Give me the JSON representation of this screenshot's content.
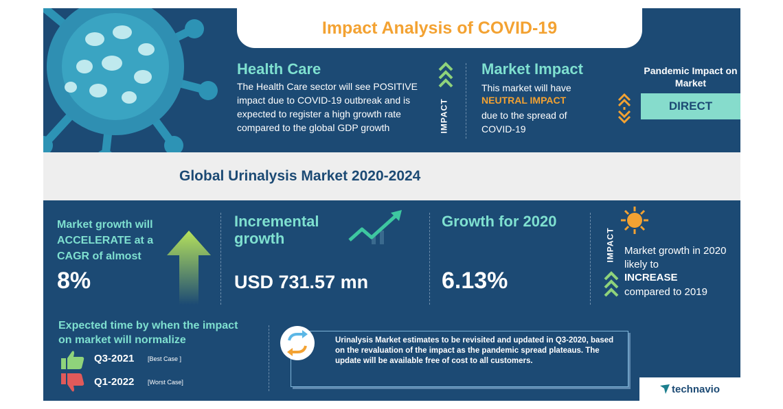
{
  "title": "Impact Analysis of COVID-19",
  "health_care": {
    "heading": "Health Care",
    "body": "The Health Care sector will see POSITIVE impact due to COVID-19 outbreak and is expected to register a high growth rate compared to the global GDP growth",
    "impact_label": "IMPACT"
  },
  "market_impact": {
    "heading": "Market Impact",
    "line1": "This market will have",
    "highlight": "NEUTRAL IMPACT",
    "line2": "due to the spread of COVID-19"
  },
  "pandemic": {
    "heading": "Pandemic Impact on Market",
    "value": "DIRECT"
  },
  "subtitle": "Global Urinalysis Market 2020-2024",
  "cagr": {
    "text": "Market growth will ACCELERATE at a CAGR of almost",
    "value": "8%"
  },
  "incremental": {
    "heading": "Incremental growth",
    "value": "USD 731.57 mn"
  },
  "growth2020": {
    "heading": "Growth for 2020",
    "value": "6.13%"
  },
  "impact_right": {
    "label": "IMPACT",
    "line1": "Market growth in 2020 likely to",
    "highlight": "INCREASE",
    "line2": "compared to 2019"
  },
  "normalize": {
    "heading": "Expected time by when the impact on market will normalize",
    "best": "Q3-2021",
    "best_tag": "[Best Case ]",
    "worst": "Q1-2022",
    "worst_tag": "[Worst Case]"
  },
  "note": "Urinalysis Market estimates to be revisited and updated in Q3-2020, based on the revaluation of the impact as the pandemic spread plateaus. The update will be available free of cost to all customers.",
  "brand": "technavio",
  "colors": {
    "navy": "#1c4a74",
    "accent_green": "#7fe0d0",
    "orange": "#f3a232",
    "light_grey": "#eeeeee"
  }
}
